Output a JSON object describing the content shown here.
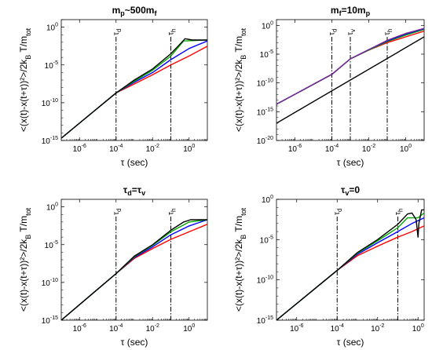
{
  "chart_data": [
    {
      "type": "line",
      "title": "m_p~500m_f",
      "title_parts": [
        {
          "text": "m",
          "sub": false
        },
        {
          "text": "p",
          "sub": true
        },
        {
          "text": "~500m",
          "sub": false
        },
        {
          "text": "f",
          "sub": true
        }
      ],
      "xscale": "log",
      "yscale": "log",
      "xlim": [
        1e-07,
        10
      ],
      "ylim": [
        1e-15,
        10
      ],
      "xticks": [
        {
          "v": 1e-06,
          "label": "10^-6"
        },
        {
          "v": 0.0001,
          "label": "10^-4"
        },
        {
          "v": 0.01,
          "label": "10^-2"
        },
        {
          "v": 1,
          "label": "10^0"
        }
      ],
      "yticks": [
        {
          "v": 1e-15,
          "label": "10^-15"
        },
        {
          "v": 1e-10,
          "label": "10^-10"
        },
        {
          "v": 1e-05,
          "label": "10^-5"
        },
        {
          "v": 1,
          "label": "10^0"
        }
      ],
      "xlabel": "τ (sec)",
      "ylabel": "<(x(t)-x(t+τ))²>/2k_B T/m_tot",
      "vlines": [
        {
          "x": 0.0001,
          "label": "τ_d"
        },
        {
          "x": 0.1,
          "label": "τ_h"
        }
      ],
      "series": [
        {
          "color": "#ff0000",
          "points": [
            [
              1e-07,
              2e-15
            ],
            [
              0.0001,
              2e-09
            ],
            [
              0.001,
              3e-08
            ],
            [
              0.01,
              5e-07
            ],
            [
              0.1,
              1e-05
            ],
            [
              1,
              0.00015
            ],
            [
              10,
              0.003
            ]
          ]
        },
        {
          "color": "#0000ff",
          "points": [
            [
              1e-07,
              2e-15
            ],
            [
              0.0001,
              2e-09
            ],
            [
              0.001,
              5e-08
            ],
            [
              0.01,
              1e-06
            ],
            [
              0.1,
              5e-05
            ],
            [
              1,
              0.0015
            ],
            [
              10,
              0.015
            ]
          ]
        },
        {
          "color": "#00aa00",
          "points": [
            [
              1e-07,
              2e-15
            ],
            [
              0.0001,
              2e-09
            ],
            [
              0.001,
              7e-08
            ],
            [
              0.01,
              2e-06
            ],
            [
              0.1,
              0.00015
            ],
            [
              0.5,
              0.015
            ],
            [
              10,
              0.02
            ]
          ]
        },
        {
          "color": "#000000",
          "points": [
            [
              1e-07,
              2e-15
            ],
            [
              0.0001,
              2e-09
            ],
            [
              0.001,
              1e-07
            ],
            [
              0.01,
              3e-06
            ],
            [
              0.1,
              0.0003
            ],
            [
              0.3,
              0.005
            ],
            [
              0.6,
              0.03
            ],
            [
              1.5,
              0.02
            ],
            [
              10,
              0.02
            ]
          ]
        }
      ]
    },
    {
      "type": "line",
      "title": "m_f=10m_p",
      "title_parts": [
        {
          "text": "m",
          "sub": false
        },
        {
          "text": "f",
          "sub": true
        },
        {
          "text": "=10m",
          "sub": false
        },
        {
          "text": "p",
          "sub": true
        }
      ],
      "xscale": "log",
      "yscale": "log",
      "xlim": [
        1e-07,
        10
      ],
      "ylim": [
        1e-20,
        10
      ],
      "xticks": [
        {
          "v": 1e-06,
          "label": "10^-6"
        },
        {
          "v": 0.0001,
          "label": "10^-4"
        },
        {
          "v": 0.01,
          "label": "10^-2"
        },
        {
          "v": 1,
          "label": "10^0"
        }
      ],
      "yticks": [
        {
          "v": 1e-20,
          "label": "10^-20"
        },
        {
          "v": 1e-15,
          "label": "10^-15"
        },
        {
          "v": 1e-10,
          "label": "10^-10"
        },
        {
          "v": 1e-05,
          "label": "10^-5"
        },
        {
          "v": 1,
          "label": "10^0"
        }
      ],
      "xlabel": "τ (sec)",
      "ylabel": "<(x(t)-x(t+τ))²>/2k_B T/m_tot",
      "vlines": [
        {
          "x": 0.0001,
          "label": "τ_d"
        },
        {
          "x": 0.001,
          "label": "τ_v"
        },
        {
          "x": 0.1,
          "label": "τ_h"
        }
      ],
      "series": [
        {
          "color": "#000000",
          "points": [
            [
              1e-07,
              1e-17
            ],
            [
              10,
              0.01
            ]
          ]
        },
        {
          "color": "#ff0000",
          "points": [
            [
              1e-07,
              2e-14
            ],
            [
              0.0001,
              3e-09
            ],
            [
              0.001,
              1.5e-06
            ],
            [
              0.01,
              5e-05
            ],
            [
              0.1,
              0.001
            ],
            [
              1,
              0.01
            ],
            [
              10,
              0.1
            ]
          ]
        },
        {
          "color": "#00aa00",
          "points": [
            [
              1e-07,
              2e-14
            ],
            [
              0.0001,
              3e-09
            ],
            [
              0.001,
              1.5e-06
            ],
            [
              0.01,
              5e-05
            ],
            [
              0.1,
              0.0015
            ],
            [
              1,
              0.02
            ],
            [
              10,
              0.2
            ]
          ]
        },
        {
          "color": "#0000ff",
          "points": [
            [
              1e-07,
              2e-14
            ],
            [
              0.0001,
              3e-09
            ],
            [
              0.001,
              1.5e-06
            ],
            [
              0.01,
              6e-05
            ],
            [
              0.1,
              0.002
            ],
            [
              1,
              0.03
            ],
            [
              10,
              0.25
            ]
          ]
        },
        {
          "color": "#7a2a8a",
          "points": [
            [
              1e-07,
              2e-14
            ],
            [
              0.0001,
              3e-09
            ],
            [
              0.001,
              1.5e-06
            ],
            [
              0.01,
              6e-05
            ],
            [
              0.1,
              0.0025
            ],
            [
              1,
              0.04
            ],
            [
              10,
              0.3
            ]
          ]
        }
      ]
    },
    {
      "type": "line",
      "title": "τ_d=τ_v",
      "title_parts": [
        {
          "text": "τ",
          "sub": false
        },
        {
          "text": "d",
          "sub": true
        },
        {
          "text": "=τ",
          "sub": false
        },
        {
          "text": "v",
          "sub": true
        }
      ],
      "xscale": "log",
      "yscale": "log",
      "xlim": [
        1e-07,
        10
      ],
      "ylim": [
        1e-15,
        10
      ],
      "xticks": [
        {
          "v": 1e-06,
          "label": "10^-6"
        },
        {
          "v": 0.0001,
          "label": "10^-4"
        },
        {
          "v": 0.01,
          "label": "10^-2"
        },
        {
          "v": 1,
          "label": "10^0"
        }
      ],
      "yticks": [
        {
          "v": 1e-15,
          "label": "10^-15"
        },
        {
          "v": 1e-10,
          "label": "10^-10"
        },
        {
          "v": 1e-05,
          "label": "10^-5"
        },
        {
          "v": 1,
          "label": "10^0"
        }
      ],
      "xlabel": "τ (sec)",
      "ylabel": "<(x(t)-x(t+τ))²>/2k_B T/m_tot",
      "vlines": [
        {
          "x": 0.0001,
          "label": "τ_d"
        },
        {
          "x": 0.1,
          "label": "τ_h"
        }
      ],
      "series": [
        {
          "color": "#ff0000",
          "points": [
            [
              1e-07,
              1e-15
            ],
            [
              0.0001,
              1.5e-09
            ],
            [
              0.001,
              1.5e-07
            ],
            [
              0.01,
              3e-06
            ],
            [
              0.1,
              5e-05
            ],
            [
              1,
              0.0005
            ],
            [
              10,
              0.005
            ]
          ]
        },
        {
          "color": "#0000ff",
          "points": [
            [
              1e-07,
              1e-15
            ],
            [
              0.0001,
              1.5e-09
            ],
            [
              0.001,
              2e-07
            ],
            [
              0.01,
              5e-06
            ],
            [
              0.1,
              0.0002
            ],
            [
              1,
              0.003
            ],
            [
              10,
              0.02
            ]
          ]
        },
        {
          "color": "#00aa00",
          "points": [
            [
              1e-07,
              1e-15
            ],
            [
              0.0001,
              1.5e-09
            ],
            [
              0.001,
              2.5e-07
            ],
            [
              0.01,
              8e-06
            ],
            [
              0.1,
              0.0005
            ],
            [
              1,
              0.01
            ],
            [
              10,
              0.02
            ]
          ]
        },
        {
          "color": "#000000",
          "points": [
            [
              1e-07,
              1e-15
            ],
            [
              0.0001,
              1.5e-09
            ],
            [
              0.001,
              3e-07
            ],
            [
              0.01,
              1e-05
            ],
            [
              0.1,
              0.0008
            ],
            [
              0.5,
              0.01
            ],
            [
              1.2,
              0.02
            ],
            [
              10,
              0.02
            ]
          ]
        }
      ]
    },
    {
      "type": "line",
      "title": "τ_v=0",
      "title_parts": [
        {
          "text": "τ",
          "sub": false
        },
        {
          "text": "v",
          "sub": true
        },
        {
          "text": "=0",
          "sub": false
        }
      ],
      "xscale": "log",
      "yscale": "log",
      "xlim": [
        1e-07,
        2
      ],
      "ylim": [
        1e-15,
        1
      ],
      "xticks": [
        {
          "v": 1e-06,
          "label": "10^-6"
        },
        {
          "v": 0.0001,
          "label": "10^-4"
        },
        {
          "v": 0.01,
          "label": "10^-2"
        },
        {
          "v": 1,
          "label": "10^0"
        }
      ],
      "yticks": [
        {
          "v": 1e-15,
          "label": "10^-15"
        },
        {
          "v": 1e-10,
          "label": "10^-10"
        },
        {
          "v": 1e-05,
          "label": "10^-5"
        },
        {
          "v": 1,
          "label": "10^0"
        }
      ],
      "xlabel": "τ (sec)",
      "ylabel": "<(x(t)-x(t+τ))²>/2k_B T/m_tot",
      "vlines": [
        {
          "x": 0.0001,
          "label": "τ_d"
        },
        {
          "x": 0.1,
          "label": "τ_h"
        }
      ],
      "series": [
        {
          "color": "#ff0000",
          "points": [
            [
              1e-07,
              1e-15
            ],
            [
              0.0001,
              1.5e-09
            ],
            [
              0.001,
              1e-07
            ],
            [
              0.01,
              1.5e-06
            ],
            [
              0.1,
              2e-05
            ],
            [
              0.5,
              0.0001
            ],
            [
              2,
              0.0005
            ]
          ]
        },
        {
          "color": "#0000ff",
          "points": [
            [
              1e-07,
              1e-15
            ],
            [
              0.0001,
              1.5e-09
            ],
            [
              0.001,
              1.5e-07
            ],
            [
              0.01,
              4e-06
            ],
            [
              0.1,
              0.0001
            ],
            [
              0.5,
              0.001
            ],
            [
              2,
              0.005
            ]
          ]
        },
        {
          "color": "#00aa00",
          "points": [
            [
              1e-07,
              1e-15
            ],
            [
              0.0001,
              1.5e-09
            ],
            [
              0.001,
              2e-07
            ],
            [
              0.01,
              7e-06
            ],
            [
              0.1,
              0.0003
            ],
            [
              0.3,
              0.005
            ],
            [
              1,
              0.005
            ],
            [
              2,
              0.02
            ]
          ]
        },
        {
          "color": "#000000",
          "points": [
            [
              1e-07,
              1e-15
            ],
            [
              0.0001,
              1.5e-09
            ],
            [
              0.001,
              2.5e-07
            ],
            [
              0.01,
              1e-05
            ],
            [
              0.1,
              0.0008
            ],
            [
              0.3,
              0.015
            ],
            [
              0.5,
              0.02
            ],
            [
              0.8,
              0.003
            ],
            [
              1,
              2e-05
            ],
            [
              1.1,
              0.001
            ],
            [
              1.5,
              0.05
            ],
            [
              2,
              0.05
            ]
          ]
        }
      ]
    }
  ]
}
